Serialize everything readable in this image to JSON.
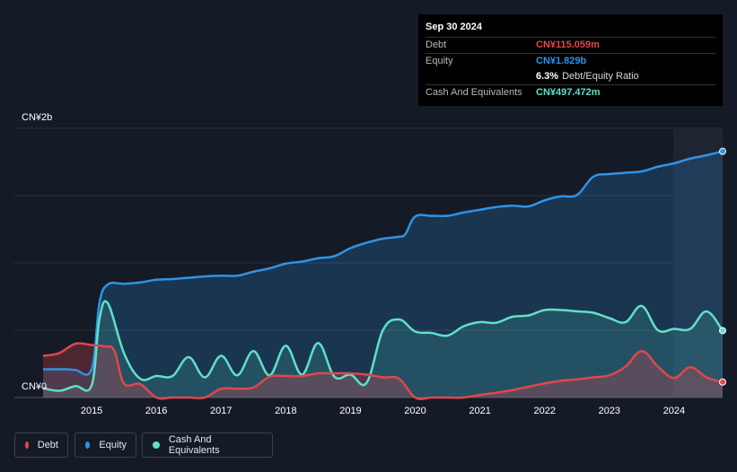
{
  "tooltip": {
    "date": "Sep 30 2024",
    "debt_label": "Debt",
    "debt_value": "CN¥115.059m",
    "equity_label": "Equity",
    "equity_value": "CN¥1.829b",
    "ratio_value": "6.3%",
    "ratio_label": "Debt/Equity Ratio",
    "cash_label": "Cash And Equivalents",
    "cash_value": "CN¥497.472m"
  },
  "legend": [
    {
      "label": "Debt",
      "color": "#e0474c"
    },
    {
      "label": "Equity",
      "color": "#2e93e6"
    },
    {
      "label": "Cash And Equivalents",
      "color": "#5ee0c8"
    }
  ],
  "chart_data": {
    "type": "area",
    "y_top_label": "CN¥2b",
    "y_bottom_label": "CN¥0",
    "ylim": [
      0,
      2000
    ],
    "xlim": [
      2014.25,
      2024.75
    ],
    "x_ticks": [
      "2015",
      "2016",
      "2017",
      "2018",
      "2019",
      "2020",
      "2021",
      "2022",
      "2023",
      "2024"
    ],
    "series": [
      {
        "name": "Equity",
        "color": "#2e93e6",
        "x": [
          2014.25,
          2014.6,
          2014.75,
          2015.0,
          2015.12,
          2015.25,
          2015.5,
          2015.75,
          2016.0,
          2016.25,
          2016.5,
          2016.75,
          2017.0,
          2017.25,
          2017.5,
          2017.75,
          2018.0,
          2018.25,
          2018.5,
          2018.75,
          2019.0,
          2019.25,
          2019.5,
          2019.75,
          2019.85,
          2020.0,
          2020.25,
          2020.5,
          2020.75,
          2021.0,
          2021.25,
          2021.5,
          2021.75,
          2022.0,
          2022.25,
          2022.5,
          2022.75,
          2023.0,
          2023.25,
          2023.5,
          2023.75,
          2024.0,
          2024.25,
          2024.5,
          2024.75
        ],
        "values": [
          210,
          210,
          205,
          210,
          700,
          840,
          845,
          855,
          875,
          880,
          890,
          900,
          905,
          905,
          935,
          960,
          995,
          1010,
          1035,
          1050,
          1110,
          1150,
          1180,
          1195,
          1215,
          1345,
          1350,
          1350,
          1375,
          1395,
          1415,
          1425,
          1420,
          1465,
          1495,
          1505,
          1640,
          1660,
          1670,
          1680,
          1715,
          1740,
          1775,
          1800,
          1829
        ]
      },
      {
        "name": "Cash And Equivalents",
        "color": "#5ee0c8",
        "x": [
          2014.25,
          2014.5,
          2014.75,
          2015.0,
          2015.12,
          2015.25,
          2015.5,
          2015.75,
          2016.0,
          2016.25,
          2016.5,
          2016.75,
          2017.0,
          2017.25,
          2017.5,
          2017.75,
          2018.0,
          2018.25,
          2018.5,
          2018.75,
          2019.0,
          2019.25,
          2019.5,
          2019.75,
          2020.0,
          2020.25,
          2020.5,
          2020.75,
          2021.0,
          2021.25,
          2021.5,
          2021.75,
          2022.0,
          2022.25,
          2022.5,
          2022.75,
          2023.0,
          2023.25,
          2023.5,
          2023.75,
          2024.0,
          2024.25,
          2024.5,
          2024.75
        ],
        "values": [
          70,
          50,
          85,
          90,
          580,
          700,
          330,
          140,
          160,
          160,
          300,
          150,
          310,
          165,
          345,
          165,
          385,
          170,
          405,
          155,
          170,
          110,
          500,
          580,
          490,
          480,
          460,
          530,
          560,
          555,
          600,
          610,
          650,
          650,
          640,
          630,
          590,
          560,
          680,
          500,
          510,
          510,
          640,
          497
        ]
      },
      {
        "name": "Debt",
        "color": "#e0474c",
        "x": [
          2014.25,
          2014.5,
          2014.75,
          2015.0,
          2015.2,
          2015.35,
          2015.5,
          2015.75,
          2016.0,
          2016.25,
          2016.5,
          2016.75,
          2017.0,
          2017.25,
          2017.5,
          2017.75,
          2018.0,
          2018.25,
          2018.5,
          2018.75,
          2019.0,
          2019.25,
          2019.5,
          2019.75,
          2020.0,
          2020.25,
          2020.5,
          2020.75,
          2021.0,
          2021.25,
          2021.5,
          2021.75,
          2022.0,
          2022.25,
          2022.5,
          2022.75,
          2023.0,
          2023.25,
          2023.5,
          2023.75,
          2024.0,
          2024.25,
          2024.5,
          2024.75
        ],
        "values": [
          310,
          330,
          400,
          390,
          380,
          350,
          105,
          100,
          0,
          0,
          0,
          0,
          65,
          65,
          75,
          155,
          160,
          160,
          180,
          180,
          180,
          170,
          150,
          140,
          0,
          0,
          0,
          0,
          20,
          35,
          55,
          80,
          105,
          125,
          135,
          150,
          165,
          230,
          345,
          230,
          145,
          225,
          150,
          115
        ]
      }
    ]
  }
}
